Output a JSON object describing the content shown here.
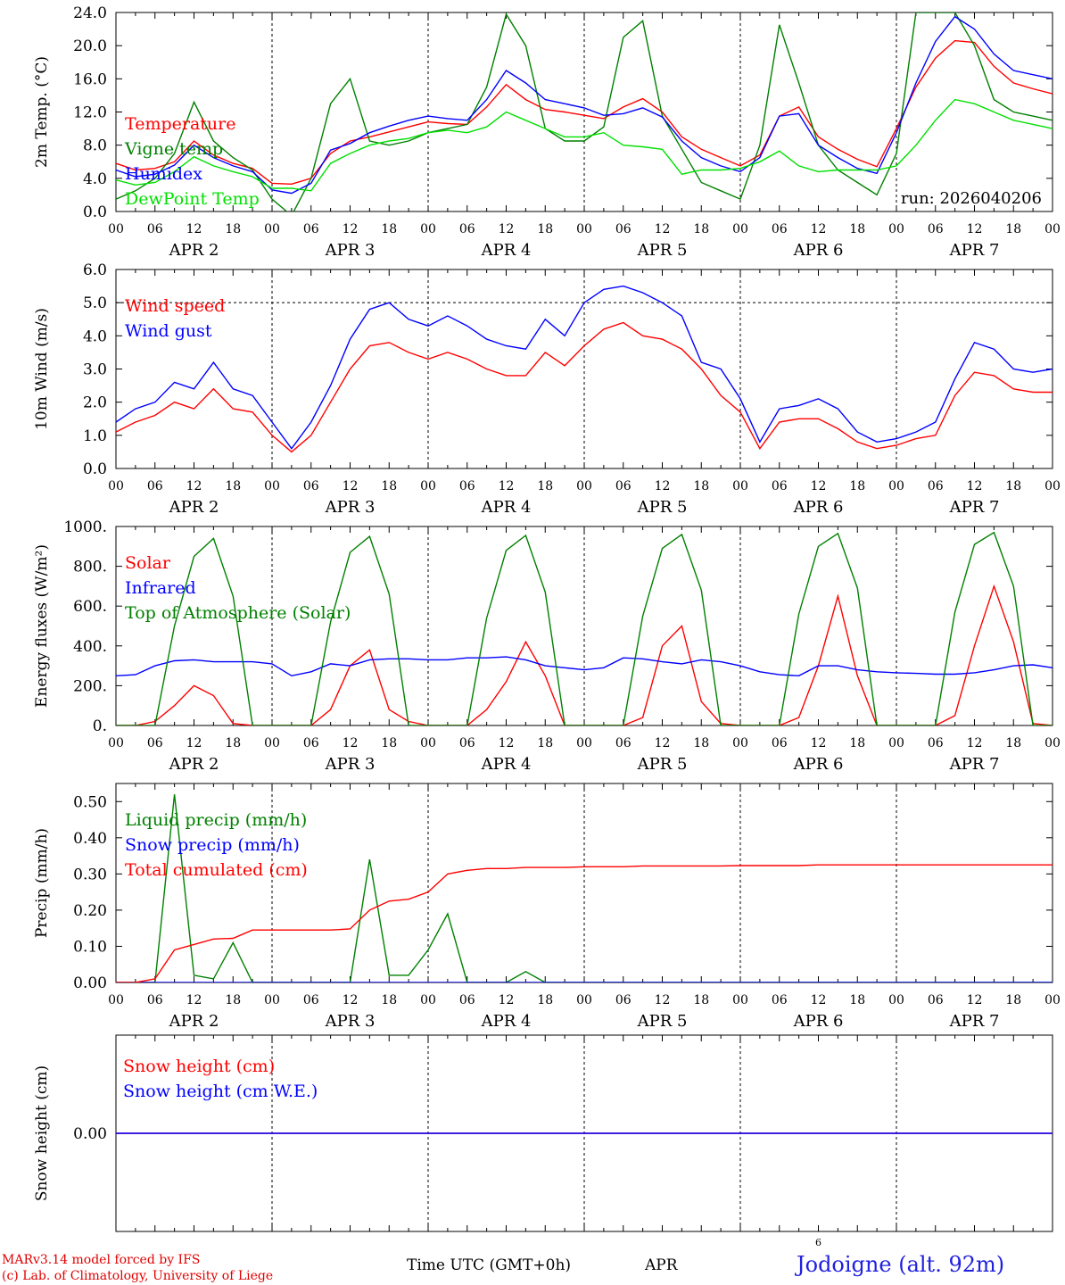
{
  "footer": {
    "credit_line1": "MARv3.14 model forced by IFS",
    "credit_line2": "(c) Lab. of Climatology, University of Liege",
    "x_axis_label": "Time UTC (GMT+0h)",
    "month_label": "APR",
    "day_label": "6",
    "station": "Jodoigne (alt. 92m)"
  },
  "chart_data": [
    {
      "type": "line",
      "ylabel": "2m Temp. (°C)",
      "ylim": [
        0,
        24
      ],
      "yticks": [
        "0.0",
        "4.0",
        "8.0",
        "12.0",
        "16.0",
        "20.0",
        "24.0"
      ],
      "ytick_values": [
        0,
        4,
        8,
        12,
        16,
        20,
        24
      ],
      "grid": "vertical dashed at 00 UTC",
      "annotation": "run: 2026040206",
      "x_hours": [
        0,
        3,
        6,
        9,
        12,
        15,
        18,
        21,
        24,
        27,
        30,
        33,
        36,
        39,
        42,
        45,
        48,
        51,
        54,
        57,
        60,
        63,
        66,
        69,
        72,
        75,
        78,
        81,
        84,
        87,
        90,
        93,
        96,
        99,
        102,
        105,
        108,
        111,
        114,
        117,
        120,
        123,
        126,
        129,
        132,
        135,
        138,
        141,
        144
      ],
      "series": [
        {
          "name": "Temperature",
          "color": "#ff0000",
          "values": [
            5.8,
            5.0,
            5.2,
            6.0,
            8.5,
            6.8,
            5.8,
            5.2,
            3.4,
            3.3,
            4.0,
            7.0,
            8.5,
            9.0,
            9.6,
            10.2,
            10.8,
            10.6,
            10.5,
            12.6,
            15.3,
            13.5,
            12.3,
            12.0,
            11.6,
            11.2,
            12.6,
            13.6,
            12.0,
            9.0,
            7.5,
            6.5,
            5.5,
            6.8,
            11.5,
            12.6,
            9.0,
            7.5,
            6.3,
            5.4,
            10.0,
            15.0,
            18.5,
            20.6,
            20.4,
            17.5,
            15.5,
            14.8,
            14.2
          ]
        },
        {
          "name": "Vigne temp",
          "color": "#008000",
          "values": [
            1.5,
            2.5,
            4.0,
            7.0,
            13.2,
            8.5,
            6.5,
            5.0,
            1.5,
            -0.5,
            4.0,
            13.0,
            16.0,
            8.5,
            8.0,
            8.5,
            9.5,
            10.0,
            10.5,
            15.0,
            23.8,
            20.0,
            10.0,
            8.5,
            8.5,
            10.2,
            21.0,
            23.0,
            11.5,
            7.5,
            3.5,
            2.5,
            1.5,
            8.0,
            22.5,
            15.5,
            8.0,
            5.0,
            3.5,
            2.0,
            7.0,
            24.0,
            24.0,
            24.0,
            20.0,
            13.5,
            12.0,
            11.5,
            11.0
          ]
        },
        {
          "name": "Humidex",
          "color": "#0000ff",
          "values": [
            5.0,
            4.2,
            4.5,
            5.6,
            8.0,
            6.5,
            5.5,
            4.8,
            2.6,
            2.2,
            3.4,
            7.4,
            8.2,
            9.5,
            10.3,
            11.0,
            11.5,
            11.2,
            11.0,
            13.5,
            17.0,
            15.5,
            13.5,
            13.0,
            12.5,
            11.6,
            11.8,
            12.5,
            11.4,
            8.5,
            6.5,
            5.5,
            4.8,
            6.5,
            11.5,
            11.8,
            8.0,
            6.5,
            5.2,
            4.6,
            9.5,
            15.5,
            20.5,
            23.5,
            22.0,
            19.0,
            17.0,
            16.5,
            16.0
          ]
        },
        {
          "name": "DewPoint Temp",
          "color": "#00e000",
          "values": [
            3.8,
            3.2,
            3.5,
            4.8,
            6.6,
            5.5,
            4.8,
            4.2,
            2.8,
            2.8,
            2.5,
            5.8,
            7.0,
            8.0,
            8.5,
            8.8,
            9.5,
            9.8,
            9.5,
            10.2,
            12.0,
            11.0,
            10.0,
            9.0,
            9.0,
            9.5,
            8.0,
            7.8,
            7.5,
            4.5,
            5.0,
            5.0,
            5.2,
            6.0,
            7.3,
            5.5,
            4.8,
            5.0,
            5.0,
            5.0,
            5.5,
            8.0,
            11.0,
            13.5,
            13.0,
            12.0,
            11.0,
            10.5,
            10.0
          ]
        }
      ]
    },
    {
      "type": "line",
      "ylabel": "10m Wind (m/s)",
      "ylim": [
        0,
        6
      ],
      "yticks": [
        "0.0",
        "1.0",
        "2.0",
        "3.0",
        "4.0",
        "5.0",
        "6.0"
      ],
      "ytick_values": [
        0,
        1,
        2,
        3,
        4,
        5,
        6
      ],
      "reference_line": 5.0,
      "x_hours": [
        0,
        3,
        6,
        9,
        12,
        15,
        18,
        21,
        24,
        27,
        30,
        33,
        36,
        39,
        42,
        45,
        48,
        51,
        54,
        57,
        60,
        63,
        66,
        69,
        72,
        75,
        78,
        81,
        84,
        87,
        90,
        93,
        96,
        99,
        102,
        105,
        108,
        111,
        114,
        117,
        120,
        123,
        126,
        129,
        132,
        135,
        138,
        141,
        144
      ],
      "series": [
        {
          "name": "Wind speed",
          "color": "#ff0000",
          "values": [
            1.1,
            1.4,
            1.6,
            2.0,
            1.8,
            2.4,
            1.8,
            1.7,
            1.0,
            0.5,
            1.0,
            2.0,
            3.0,
            3.7,
            3.8,
            3.5,
            3.3,
            3.5,
            3.3,
            3.0,
            2.8,
            2.8,
            3.5,
            3.1,
            3.7,
            4.2,
            4.4,
            4.0,
            3.9,
            3.6,
            3.0,
            2.2,
            1.7,
            0.6,
            1.4,
            1.5,
            1.5,
            1.2,
            0.8,
            0.6,
            0.7,
            0.9,
            1.0,
            2.2,
            2.9,
            2.8,
            2.4,
            2.3,
            2.3
          ]
        },
        {
          "name": "Wind gust",
          "color": "#0000ff",
          "values": [
            1.4,
            1.8,
            2.0,
            2.6,
            2.4,
            3.2,
            2.4,
            2.2,
            1.4,
            0.6,
            1.4,
            2.5,
            3.9,
            4.8,
            5.0,
            4.5,
            4.3,
            4.6,
            4.3,
            3.9,
            3.7,
            3.6,
            4.5,
            4.0,
            5.0,
            5.4,
            5.5,
            5.3,
            5.0,
            4.6,
            3.2,
            3.0,
            2.1,
            0.8,
            1.8,
            1.9,
            2.1,
            1.8,
            1.1,
            0.8,
            0.9,
            1.1,
            1.4,
            2.7,
            3.8,
            3.6,
            3.0,
            2.9,
            3.0
          ]
        }
      ]
    },
    {
      "type": "line",
      "ylabel": "Energy fluxes (W/m²)",
      "ylim": [
        0,
        1000
      ],
      "yticks": [
        "0.",
        "200.",
        "400.",
        "600.",
        "800.",
        "1000."
      ],
      "ytick_values": [
        0,
        200,
        400,
        600,
        800,
        1000
      ],
      "x_hours": [
        0,
        3,
        6,
        9,
        12,
        15,
        18,
        21,
        24,
        27,
        30,
        33,
        36,
        39,
        42,
        45,
        48,
        51,
        54,
        57,
        60,
        63,
        66,
        69,
        72,
        75,
        78,
        81,
        84,
        87,
        90,
        93,
        96,
        99,
        102,
        105,
        108,
        111,
        114,
        117,
        120,
        123,
        126,
        129,
        132,
        135,
        138,
        141,
        144
      ],
      "series": [
        {
          "name": "Solar",
          "color": "#ff0000",
          "values": [
            0,
            0,
            20,
            100,
            200,
            150,
            10,
            0,
            0,
            0,
            0,
            80,
            300,
            380,
            80,
            20,
            0,
            0,
            0,
            80,
            220,
            420,
            250,
            0,
            0,
            0,
            0,
            40,
            400,
            500,
            120,
            10,
            0,
            0,
            0,
            40,
            300,
            650,
            250,
            0,
            0,
            0,
            0,
            50,
            400,
            700,
            420,
            10,
            0
          ]
        },
        {
          "name": "Infrared",
          "color": "#0000ff",
          "values": [
            250,
            255,
            300,
            325,
            330,
            320,
            320,
            320,
            310,
            250,
            270,
            310,
            300,
            330,
            335,
            335,
            330,
            330,
            340,
            340,
            345,
            330,
            300,
            290,
            280,
            290,
            340,
            335,
            320,
            310,
            330,
            320,
            300,
            270,
            255,
            250,
            300,
            300,
            280,
            270,
            265,
            262,
            258,
            258,
            265,
            280,
            300,
            305,
            290
          ]
        },
        {
          "name": "Top of Atmosphere (Solar)",
          "color": "#008000",
          "values": [
            0,
            0,
            0,
            500,
            850,
            940,
            650,
            0,
            0,
            0,
            0,
            520,
            870,
            950,
            660,
            0,
            0,
            0,
            0,
            540,
            880,
            955,
            670,
            0,
            0,
            0,
            0,
            550,
            890,
            960,
            680,
            0,
            0,
            0,
            0,
            560,
            900,
            965,
            690,
            0,
            0,
            0,
            0,
            570,
            910,
            970,
            700,
            0,
            0
          ]
        }
      ]
    },
    {
      "type": "line",
      "ylabel": "Precip (mm/h)",
      "ylim": [
        0,
        0.55
      ],
      "yticks": [
        "0.00",
        "0.10",
        "0.20",
        "0.30",
        "0.40",
        "0.50"
      ],
      "ytick_values": [
        0,
        0.1,
        0.2,
        0.3,
        0.4,
        0.5
      ],
      "x_hours": [
        0,
        3,
        6,
        9,
        12,
        15,
        18,
        21,
        24,
        27,
        30,
        33,
        36,
        39,
        42,
        45,
        48,
        51,
        54,
        57,
        60,
        63,
        66,
        69,
        72,
        75,
        78,
        81,
        84,
        87,
        90,
        93,
        96,
        99,
        102,
        105,
        108,
        111,
        114,
        117,
        120,
        123,
        126,
        129,
        132,
        135,
        138,
        141,
        144
      ],
      "series": [
        {
          "name": "Liquid precip (mm/h)",
          "color": "#008000",
          "values": [
            0,
            0,
            0,
            0.52,
            0.02,
            0.01,
            0.11,
            0,
            0,
            0,
            0,
            0,
            0,
            0.34,
            0.02,
            0.02,
            0.09,
            0.19,
            0,
            0,
            0,
            0.03,
            0,
            0,
            0,
            0,
            0,
            0,
            0,
            0,
            0,
            0,
            0,
            0,
            0,
            0,
            0,
            0,
            0,
            0,
            0,
            0,
            0,
            0,
            0,
            0,
            0,
            0,
            0
          ]
        },
        {
          "name": "Snow precip (mm/h)",
          "color": "#0000ff",
          "values": [
            0,
            0,
            0,
            0,
            0,
            0,
            0,
            0,
            0,
            0,
            0,
            0,
            0,
            0,
            0,
            0,
            0,
            0,
            0,
            0,
            0,
            0,
            0,
            0,
            0,
            0,
            0,
            0,
            0,
            0,
            0,
            0,
            0,
            0,
            0,
            0,
            0,
            0,
            0,
            0,
            0,
            0,
            0,
            0,
            0,
            0,
            0,
            0,
            0
          ]
        },
        {
          "name": "Total cumulated (cm)",
          "color": "#ff0000",
          "values": [
            0,
            0,
            0.01,
            0.09,
            0.105,
            0.12,
            0.122,
            0.145,
            0.145,
            0.145,
            0.145,
            0.145,
            0.148,
            0.2,
            0.225,
            0.23,
            0.25,
            0.3,
            0.31,
            0.315,
            0.315,
            0.318,
            0.318,
            0.318,
            0.32,
            0.32,
            0.32,
            0.322,
            0.322,
            0.322,
            0.322,
            0.322,
            0.323,
            0.323,
            0.323,
            0.323,
            0.325,
            0.325,
            0.325,
            0.325,
            0.325,
            0.325,
            0.325,
            0.325,
            0.325,
            0.325,
            0.325,
            0.325,
            0.325
          ]
        }
      ]
    },
    {
      "type": "line",
      "ylabel": "Snow height (cm)",
      "ylim": [
        -0.5,
        0.5
      ],
      "yticks": [
        "0.00"
      ],
      "ytick_values": [
        0
      ],
      "x_hours": [
        0,
        144
      ],
      "series": [
        {
          "name": "Snow height (cm)",
          "color": "#ff0000",
          "values": [
            0,
            0
          ]
        },
        {
          "name": "Snow height (cm W.E.)",
          "color": "#0000ff",
          "values": [
            0,
            0
          ]
        }
      ]
    }
  ],
  "x_axis": {
    "hour_ticks": [
      "00",
      "06",
      "12",
      "18"
    ],
    "end_tick": "00",
    "day_labels": [
      "APR  2",
      "APR  3",
      "APR  4",
      "APR  5",
      "APR  6",
      "APR  7"
    ]
  }
}
